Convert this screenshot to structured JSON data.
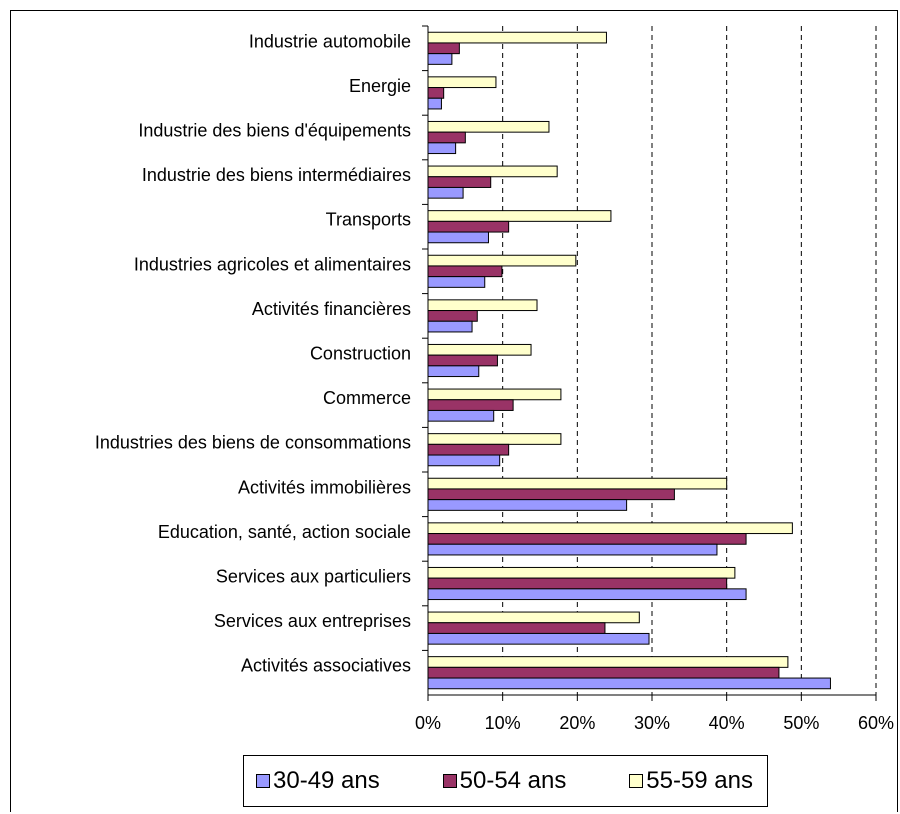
{
  "chart_data": {
    "type": "bar",
    "orientation": "horizontal",
    "categories": [
      "Industrie automobile",
      "Energie",
      "Industrie des biens d'équipements",
      "Industrie des biens intermédiaires",
      "Transports",
      "Industries agricoles et alimentaires",
      "Activités financières",
      "Construction",
      "Commerce",
      "Industries des biens de consommations",
      "Activités immobilières",
      "Education, santé, action sociale",
      "Services aux particuliers",
      "Services aux entreprises",
      "Activités associatives"
    ],
    "series": [
      {
        "name": "30-49 ans",
        "color": "#9999ff",
        "values": [
          3.2,
          1.8,
          3.7,
          4.7,
          8.1,
          7.6,
          5.9,
          6.8,
          8.8,
          9.6,
          26.6,
          38.7,
          42.6,
          29.6,
          53.9
        ]
      },
      {
        "name": "50-54 ans",
        "color": "#993366",
        "values": [
          4.2,
          2.1,
          5.0,
          8.4,
          10.8,
          9.9,
          6.6,
          9.3,
          11.4,
          10.8,
          33.0,
          42.6,
          40.0,
          23.7,
          47.0
        ]
      },
      {
        "name": "55-59 ans",
        "color": "#ffffcc",
        "values": [
          23.9,
          9.1,
          16.2,
          17.3,
          24.5,
          19.8,
          14.6,
          13.8,
          17.8,
          17.8,
          40.0,
          48.8,
          41.1,
          28.3,
          48.2
        ]
      }
    ],
    "xticks": [
      "0%",
      "10%",
      "20%",
      "30%",
      "40%",
      "50%",
      "60%"
    ],
    "xlim": [
      0,
      60
    ],
    "grid": "vertical-dashed",
    "legend_position": "bottom",
    "title": "",
    "xlabel": "",
    "ylabel": ""
  }
}
